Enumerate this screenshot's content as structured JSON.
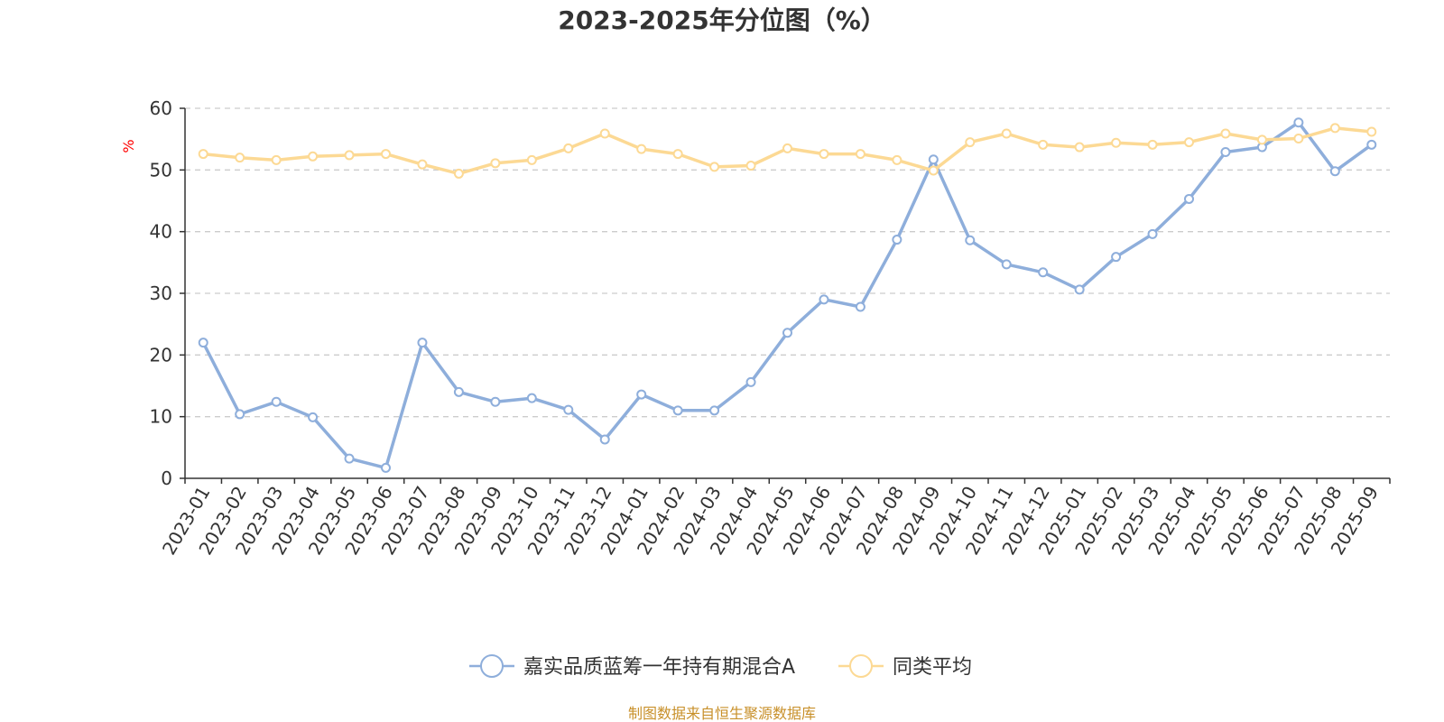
{
  "chart_data": {
    "type": "line",
    "title": "2023-2025年分位图（%）",
    "y_unit": "%",
    "ylim": [
      0,
      60
    ],
    "yticks": [
      0,
      10,
      20,
      30,
      40,
      50,
      60
    ],
    "grid": true,
    "legend_position": "bottom",
    "categories": [
      "2023-01",
      "2023-02",
      "2023-03",
      "2023-04",
      "2023-05",
      "2023-06",
      "2023-07",
      "2023-08",
      "2023-09",
      "2023-10",
      "2023-11",
      "2023-12",
      "2024-01",
      "2024-02",
      "2024-03",
      "2024-04",
      "2024-05",
      "2024-06",
      "2024-07",
      "2024-08",
      "2024-09",
      "2024-10",
      "2024-11",
      "2024-12",
      "2025-01",
      "2025-02",
      "2025-03",
      "2025-04",
      "2025-05",
      "2025-06",
      "2025-07",
      "2025-08",
      "2025-09"
    ],
    "series": [
      {
        "name": "嘉实品质蓝筹一年持有期混合A",
        "color": "#8eaedb",
        "values": [
          22.0,
          10.4,
          12.4,
          9.9,
          3.2,
          1.7,
          22.0,
          14.0,
          12.4,
          13.0,
          11.1,
          6.3,
          13.6,
          11.0,
          11.0,
          15.6,
          23.6,
          29.0,
          27.8,
          38.7,
          51.7,
          38.6,
          34.7,
          33.4,
          30.6,
          35.9,
          39.6,
          45.3,
          52.9,
          53.7,
          57.7,
          49.8,
          54.1
        ]
      },
      {
        "name": "同类平均",
        "color": "#fcd994",
        "values": [
          52.6,
          52.0,
          51.6,
          52.2,
          52.4,
          52.6,
          50.9,
          49.4,
          51.1,
          51.6,
          53.5,
          55.9,
          53.4,
          52.6,
          50.5,
          50.7,
          53.5,
          52.6,
          52.6,
          51.6,
          49.9,
          54.5,
          55.9,
          54.1,
          53.7,
          54.4,
          54.1,
          54.5,
          55.9,
          54.9,
          55.1,
          56.8,
          56.2
        ]
      }
    ]
  },
  "source_text": "制图数据来自恒生聚源数据库"
}
